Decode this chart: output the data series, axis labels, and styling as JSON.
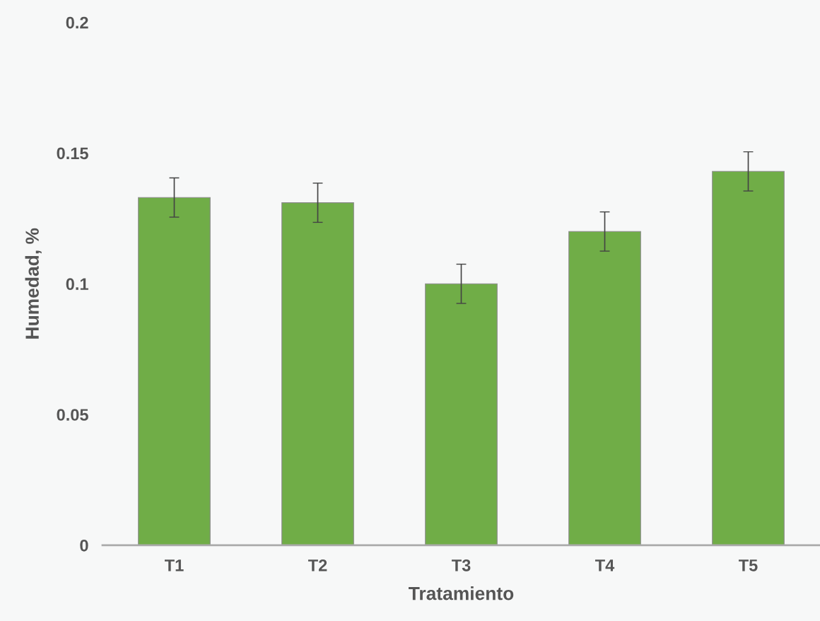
{
  "chart_data": {
    "type": "bar",
    "xlabel": "Tratamiento",
    "ylabel": "Humedad, %",
    "categories": [
      "T1",
      "T2",
      "T3",
      "T4",
      "T5"
    ],
    "values": [
      0.133,
      0.131,
      0.1,
      0.12,
      0.143
    ],
    "errors": [
      0.0075,
      0.0075,
      0.0075,
      0.0075,
      0.0075
    ],
    "color": "#70ad47",
    "ylim": [
      0,
      0.2
    ],
    "yticks": [
      0,
      0.05,
      0.1,
      0.15,
      0.2
    ],
    "grid": false,
    "legend": false
  }
}
